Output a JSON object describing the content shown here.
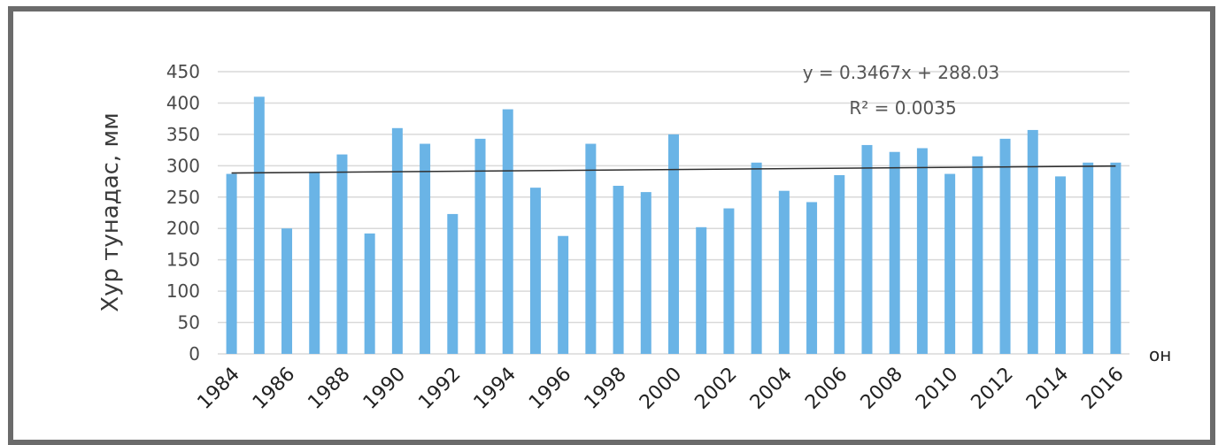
{
  "chart_data": {
    "type": "bar",
    "title": "",
    "ylabel": "Хур тунадас, мм",
    "xlabel": "он",
    "ylim": [
      0,
      450
    ],
    "yticks": [
      0,
      50,
      100,
      150,
      200,
      250,
      300,
      350,
      400,
      450
    ],
    "x": [
      1984,
      1985,
      1986,
      1987,
      1988,
      1989,
      1990,
      1991,
      1992,
      1993,
      1994,
      1995,
      1996,
      1997,
      1998,
      1999,
      2000,
      2001,
      2002,
      2003,
      2004,
      2005,
      2006,
      2007,
      2008,
      2009,
      2010,
      2011,
      2012,
      2013,
      2014,
      2015,
      2016
    ],
    "xtick_labels": [
      "1984",
      "1986",
      "1988",
      "1990",
      "1992",
      "1994",
      "1996",
      "1998",
      "2000",
      "2002",
      "2004",
      "2006",
      "2008",
      "2010",
      "2012",
      "2014",
      "2016"
    ],
    "values": [
      287,
      410,
      200,
      290,
      318,
      192,
      360,
      335,
      223,
      343,
      390,
      265,
      188,
      335,
      268,
      258,
      350,
      202,
      232,
      305,
      260,
      242,
      285,
      333,
      322,
      328,
      287,
      315,
      343,
      357,
      283,
      305,
      305
    ],
    "grid": true,
    "trendline": {
      "slope": 0.3467,
      "intercept": 288.03,
      "equation": "y = 0.3467x + 288.03",
      "r2": "R² = 0.0035"
    },
    "colors": {
      "bar": "#6ab4e6",
      "trend": "#2f2f2f",
      "grid": "#d9d9d9",
      "frame": "#666666"
    }
  }
}
